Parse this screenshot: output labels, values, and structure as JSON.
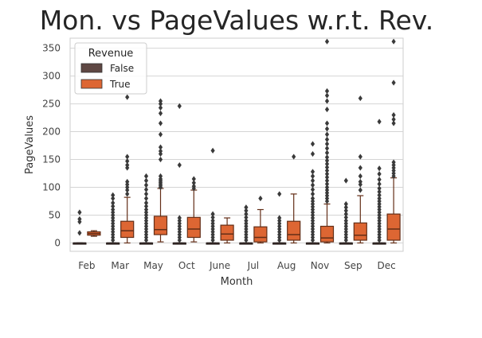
{
  "chart_data": {
    "type": "boxplot",
    "title": "Mon. vs PageValues w.r.t. Rev.",
    "xlabel": "Month",
    "ylabel": "PageValues",
    "ylim": [
      -15,
      368
    ],
    "yticks": [
      0,
      50,
      100,
      150,
      200,
      250,
      300,
      350
    ],
    "categories": [
      "Feb",
      "Mar",
      "May",
      "Oct",
      "June",
      "Jul",
      "Aug",
      "Nov",
      "Sep",
      "Dec"
    ],
    "grid": "horizontal",
    "legend": {
      "title": "Revenue",
      "placement": "top-left"
    },
    "series": [
      {
        "name": "False",
        "color": "#5e4743",
        "boxes": [
          {
            "q1": 0,
            "median": 0,
            "q3": 0,
            "whisker_low": 0,
            "whisker_high": 0,
            "outliers": [
              55,
              43,
              38,
              18
            ]
          },
          {
            "q1": 0,
            "median": 0,
            "q3": 0,
            "whisker_low": 0,
            "whisker_high": 0,
            "outliers": [
              5,
              10,
              15,
              20,
              25,
              30,
              35,
              40,
              45,
              50,
              55,
              60,
              66,
              72,
              80,
              86
            ]
          },
          {
            "q1": 0,
            "median": 0,
            "q3": 0,
            "whisker_low": 0,
            "whisker_high": 0,
            "outliers": [
              5,
              10,
              15,
              20,
              25,
              30,
              35,
              40,
              45,
              50,
              55,
              60,
              66,
              72,
              80,
              88,
              96,
              104,
              112,
              120
            ]
          },
          {
            "q1": 0,
            "median": 0,
            "q3": 0,
            "whisker_low": 0,
            "whisker_high": 0,
            "outliers": [
              5,
              10,
              15,
              20,
              25,
              30,
              35,
              40,
              45,
              140,
              246
            ]
          },
          {
            "q1": 0,
            "median": 0,
            "q3": 0,
            "whisker_low": 0,
            "whisker_high": 0,
            "outliers": [
              5,
              10,
              15,
              20,
              25,
              30,
              35,
              40,
              46,
              52,
              166
            ]
          },
          {
            "q1": 0,
            "median": 0,
            "q3": 0,
            "whisker_low": 0,
            "whisker_high": 0,
            "outliers": [
              5,
              10,
              15,
              20,
              25,
              30,
              35,
              40,
              46,
              52,
              58,
              64
            ]
          },
          {
            "q1": 0,
            "median": 0,
            "q3": 0,
            "whisker_low": 0,
            "whisker_high": 0,
            "outliers": [
              5,
              10,
              15,
              20,
              25,
              30,
              35,
              40,
              45,
              88
            ]
          },
          {
            "q1": 0,
            "median": 0,
            "q3": 0,
            "whisker_low": 0,
            "whisker_high": 0,
            "outliers": [
              5,
              10,
              15,
              20,
              25,
              30,
              35,
              40,
              45,
              50,
              55,
              60,
              65,
              70,
              75,
              80,
              88,
              96,
              104,
              112,
              120,
              128,
              160,
              178
            ]
          },
          {
            "q1": 0,
            "median": 0,
            "q3": 0,
            "whisker_low": 0,
            "whisker_high": 0,
            "outliers": [
              5,
              10,
              15,
              20,
              25,
              30,
              35,
              40,
              46,
              52,
              58,
              64,
              70,
              112
            ]
          },
          {
            "q1": 0,
            "median": 0,
            "q3": 0,
            "whisker_low": 0,
            "whisker_high": 0,
            "outliers": [
              5,
              10,
              15,
              20,
              25,
              30,
              35,
              40,
              45,
              50,
              55,
              60,
              65,
              70,
              75,
              80,
              86,
              92,
              98,
              106,
              114,
              124,
              134,
              218
            ]
          }
        ]
      },
      {
        "name": "True",
        "color": "#dd6633",
        "boxes": [
          {
            "q1": 14,
            "median": 17,
            "q3": 20,
            "whisker_low": 12,
            "whisker_high": 22,
            "outliers": []
          },
          {
            "q1": 10,
            "median": 22,
            "q3": 39,
            "whisker_low": 0,
            "whisker_high": 82,
            "outliers": [
              88,
              95,
              100,
              105,
              110,
              135,
              140,
              147,
              155,
              262
            ]
          },
          {
            "q1": 15,
            "median": 24,
            "q3": 48,
            "whisker_low": 2,
            "whisker_high": 98,
            "outliers": [
              100,
              103,
              106,
              109,
              112,
              115,
              120,
              150,
              160,
              165,
              172,
              195,
              215,
              233,
              243,
              250,
              255
            ]
          },
          {
            "q1": 10,
            "median": 25,
            "q3": 46,
            "whisker_low": 2,
            "whisker_high": 95,
            "outliers": [
              98,
              102,
              108,
              115
            ]
          },
          {
            "q1": 5,
            "median": 16,
            "q3": 32,
            "whisker_low": 0,
            "whisker_high": 45,
            "outliers": []
          },
          {
            "q1": 2,
            "median": 10,
            "q3": 29,
            "whisker_low": 0,
            "whisker_high": 60,
            "outliers": [
              80
            ]
          },
          {
            "q1": 5,
            "median": 15,
            "q3": 39,
            "whisker_low": 0,
            "whisker_high": 88,
            "outliers": [
              155
            ]
          },
          {
            "q1": 2,
            "median": 9,
            "q3": 30,
            "whisker_low": 0,
            "whisker_high": 70,
            "outliers": [
              75,
              80,
              85,
              90,
              95,
              100,
              106,
              112,
              118,
              124,
              130,
              136,
              142,
              148,
              154,
              162,
              170,
              178,
              186,
              195,
              205,
              215,
              240,
              255,
              265,
              273,
              362
            ]
          },
          {
            "q1": 5,
            "median": 14,
            "q3": 36,
            "whisker_low": 0,
            "whisker_high": 85,
            "outliers": [
              95,
              105,
              110,
              120,
              135,
              155,
              260
            ]
          },
          {
            "q1": 5,
            "median": 25,
            "q3": 52,
            "whisker_low": 0,
            "whisker_high": 117,
            "outliers": [
              120,
              125,
              130,
              135,
              140,
              145,
              215,
              222,
              230,
              288,
              362
            ]
          }
        ]
      }
    ]
  }
}
